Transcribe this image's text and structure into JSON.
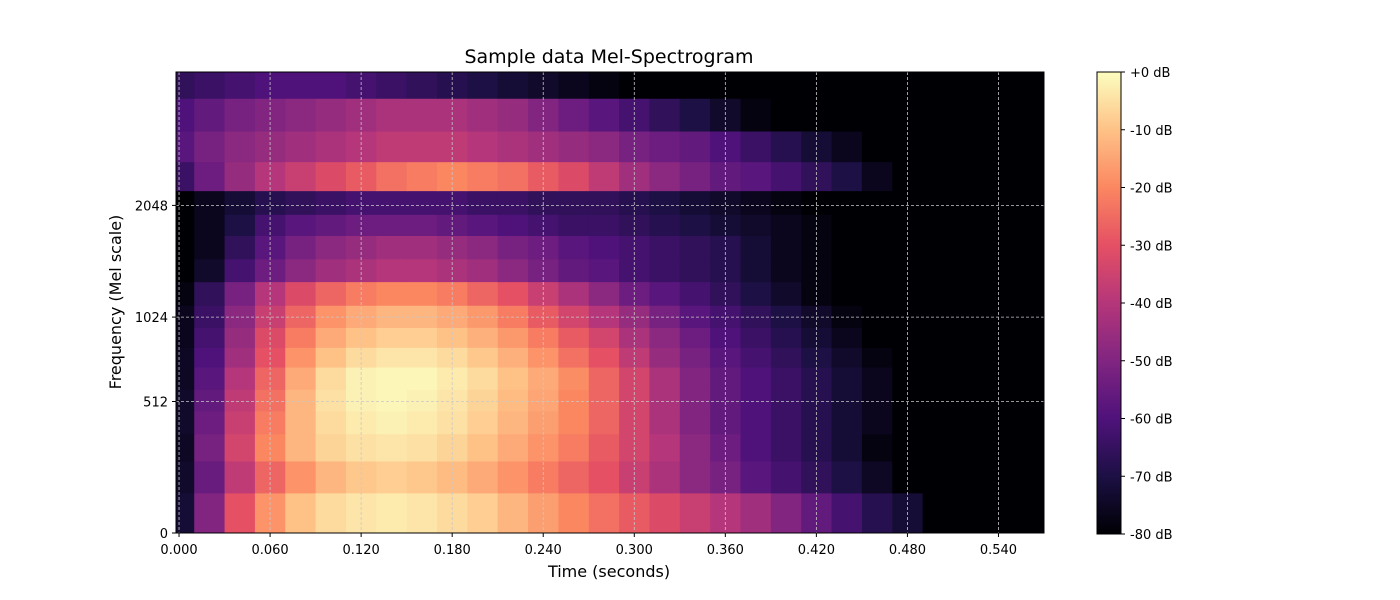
{
  "chart_data": {
    "type": "heatmap",
    "title": "Sample data Mel-Spectrogram",
    "xlabel": "Time (seconds)",
    "ylabel": "Frequency (Mel scale)",
    "x_ticks": [
      "0.000",
      "0.060",
      "0.120",
      "0.180",
      "0.240",
      "0.300",
      "0.360",
      "0.420",
      "0.480",
      "0.540"
    ],
    "x_tick_values": [
      0,
      0.06,
      0.12,
      0.18,
      0.24,
      0.3,
      0.36,
      0.42,
      0.48,
      0.54
    ],
    "xlim": [
      -0.002,
      0.57
    ],
    "y_ticks": [
      "0",
      "512",
      "1024",
      "2048"
    ],
    "y_tick_values": [
      0,
      512,
      1024,
      2048
    ],
    "y_scale": "mel",
    "ylim": [
      0,
      4096
    ],
    "grid": true,
    "colormap": "magma",
    "colorbar": {
      "labels": [
        "+0 dB",
        "-10 dB",
        "-20 dB",
        "-30 dB",
        "-40 dB",
        "-50 dB",
        "-60 dB",
        "-70 dB",
        "-80 dB"
      ],
      "values": [
        0,
        -10,
        -20,
        -30,
        -40,
        -50,
        -60,
        -70,
        -80
      ],
      "range": [
        -80,
        0
      ]
    },
    "time_bins": [
      0.0,
      0.02,
      0.04,
      0.06,
      0.08,
      0.1,
      0.12,
      0.14,
      0.16,
      0.18,
      0.2,
      0.22,
      0.24,
      0.26,
      0.28,
      0.3,
      0.32,
      0.34,
      0.36,
      0.38,
      0.4,
      0.42,
      0.44,
      0.46,
      0.48,
      0.5,
      0.52,
      0.54,
      0.56
    ],
    "mel_bands": [
      64,
      192,
      300,
      420,
      512,
      640,
      760,
      880,
      1024,
      1200,
      1400,
      1600,
      1850,
      2048,
      2400,
      2800,
      3300,
      3900
    ],
    "values_db": [
      [
        -72,
        -50,
        -30,
        -18,
        -10,
        -6,
        -4,
        -3,
        -4,
        -6,
        -8,
        -12,
        -16,
        -20,
        -24,
        -28,
        -32,
        -36,
        -40,
        -44,
        -50,
        -56,
        -62,
        -68,
        -72,
        -80,
        -80,
        -80,
        -80
      ],
      [
        -74,
        -55,
        -38,
        -26,
        -18,
        -12,
        -9,
        -8,
        -9,
        -11,
        -14,
        -18,
        -22,
        -26,
        -30,
        -36,
        -42,
        -48,
        -52,
        -58,
        -62,
        -66,
        -70,
        -75,
        -80,
        -80,
        -80,
        -80,
        -80
      ],
      [
        -75,
        -52,
        -34,
        -20,
        -12,
        -7,
        -5,
        -4,
        -5,
        -7,
        -10,
        -14,
        -18,
        -22,
        -28,
        -34,
        -40,
        -48,
        -54,
        -60,
        -64,
        -68,
        -72,
        -78,
        -80,
        -80,
        -80,
        -80,
        -80
      ],
      [
        -74,
        -54,
        -36,
        -22,
        -12,
        -6,
        -3,
        -2,
        -3,
        -5,
        -8,
        -12,
        -16,
        -20,
        -26,
        -34,
        -42,
        -50,
        -56,
        -60,
        -64,
        -68,
        -72,
        -76,
        -80,
        -80,
        -80,
        -80,
        -80
      ],
      [
        -74,
        -56,
        -38,
        -24,
        -12,
        -5,
        -2,
        -1,
        -2,
        -4,
        -7,
        -11,
        -15,
        -20,
        -26,
        -34,
        -42,
        -50,
        -56,
        -60,
        -64,
        -68,
        -72,
        -76,
        -80,
        -80,
        -80,
        -80,
        -80
      ],
      [
        -75,
        -58,
        -40,
        -26,
        -14,
        -6,
        -2,
        -1,
        -1,
        -3,
        -6,
        -10,
        -14,
        -19,
        -26,
        -34,
        -42,
        -50,
        -56,
        -60,
        -64,
        -68,
        -72,
        -76,
        -80,
        -80,
        -80,
        -80,
        -80
      ],
      [
        -75,
        -60,
        -44,
        -30,
        -18,
        -10,
        -6,
        -4,
        -4,
        -6,
        -9,
        -13,
        -18,
        -24,
        -30,
        -38,
        -46,
        -52,
        -58,
        -62,
        -66,
        -70,
        -74,
        -78,
        -80,
        -80,
        -80,
        -80,
        -80
      ],
      [
        -76,
        -62,
        -46,
        -32,
        -22,
        -14,
        -10,
        -8,
        -8,
        -10,
        -13,
        -17,
        -22,
        -28,
        -34,
        -42,
        -48,
        -54,
        -60,
        -64,
        -68,
        -72,
        -76,
        -80,
        -80,
        -80,
        -80,
        -80,
        -80
      ],
      [
        -76,
        -64,
        -48,
        -36,
        -26,
        -18,
        -14,
        -12,
        -12,
        -14,
        -17,
        -22,
        -28,
        -34,
        -40,
        -46,
        -52,
        -58,
        -62,
        -66,
        -70,
        -74,
        -78,
        -80,
        -80,
        -80,
        -80,
        -80,
        -80
      ],
      [
        -78,
        -66,
        -52,
        -40,
        -32,
        -26,
        -22,
        -20,
        -20,
        -22,
        -26,
        -30,
        -36,
        -42,
        -48,
        -54,
        -58,
        -62,
        -66,
        -70,
        -74,
        -78,
        -80,
        -80,
        -80,
        -80,
        -80,
        -80,
        -80
      ],
      [
        -80,
        -74,
        -62,
        -54,
        -48,
        -44,
        -42,
        -40,
        -40,
        -42,
        -44,
        -48,
        -52,
        -56,
        -58,
        -62,
        -64,
        -66,
        -68,
        -72,
        -76,
        -78,
        -80,
        -80,
        -80,
        -80,
        -80,
        -80,
        -80
      ],
      [
        -80,
        -76,
        -66,
        -58,
        -52,
        -48,
        -46,
        -44,
        -44,
        -46,
        -48,
        -52,
        -54,
        -58,
        -60,
        -62,
        -64,
        -66,
        -68,
        -72,
        -76,
        -78,
        -80,
        -80,
        -80,
        -80,
        -80,
        -80,
        -80
      ],
      [
        -80,
        -76,
        -70,
        -62,
        -58,
        -56,
        -54,
        -54,
        -54,
        -56,
        -58,
        -60,
        -62,
        -64,
        -64,
        -66,
        -68,
        -70,
        -72,
        -74,
        -76,
        -78,
        -80,
        -80,
        -80,
        -80,
        -80,
        -80,
        -80
      ],
      [
        -80,
        -76,
        -72,
        -68,
        -66,
        -64,
        -62,
        -62,
        -62,
        -62,
        -64,
        -64,
        -66,
        -66,
        -66,
        -68,
        -70,
        -72,
        -74,
        -76,
        -78,
        -80,
        -80,
        -80,
        -80,
        -80,
        -80,
        -80,
        -80
      ],
      [
        -64,
        -54,
        -46,
        -40,
        -36,
        -32,
        -28,
        -24,
        -22,
        -20,
        -22,
        -24,
        -28,
        -32,
        -38,
        -44,
        -48,
        -52,
        -56,
        -58,
        -62,
        -66,
        -70,
        -76,
        -80,
        -80,
        -80,
        -80,
        -80
      ],
      [
        -58,
        -52,
        -48,
        -46,
        -44,
        -42,
        -40,
        -38,
        -38,
        -38,
        -40,
        -42,
        -44,
        -46,
        -48,
        -52,
        -54,
        -56,
        -60,
        -64,
        -68,
        -72,
        -76,
        -80,
        -80,
        -80,
        -80,
        -80,
        -80
      ],
      [
        -60,
        -56,
        -52,
        -50,
        -48,
        -46,
        -44,
        -42,
        -42,
        -42,
        -44,
        -46,
        -50,
        -54,
        -58,
        -62,
        -66,
        -70,
        -74,
        -78,
        -80,
        -80,
        -80,
        -80,
        -80,
        -80,
        -80,
        -80,
        -80
      ],
      [
        -66,
        -64,
        -62,
        -60,
        -60,
        -60,
        -62,
        -64,
        -66,
        -68,
        -70,
        -72,
        -74,
        -76,
        -78,
        -80,
        -80,
        -80,
        -80,
        -80,
        -80,
        -80,
        -80,
        -80,
        -80,
        -80,
        -80,
        -80,
        -80
      ]
    ]
  }
}
